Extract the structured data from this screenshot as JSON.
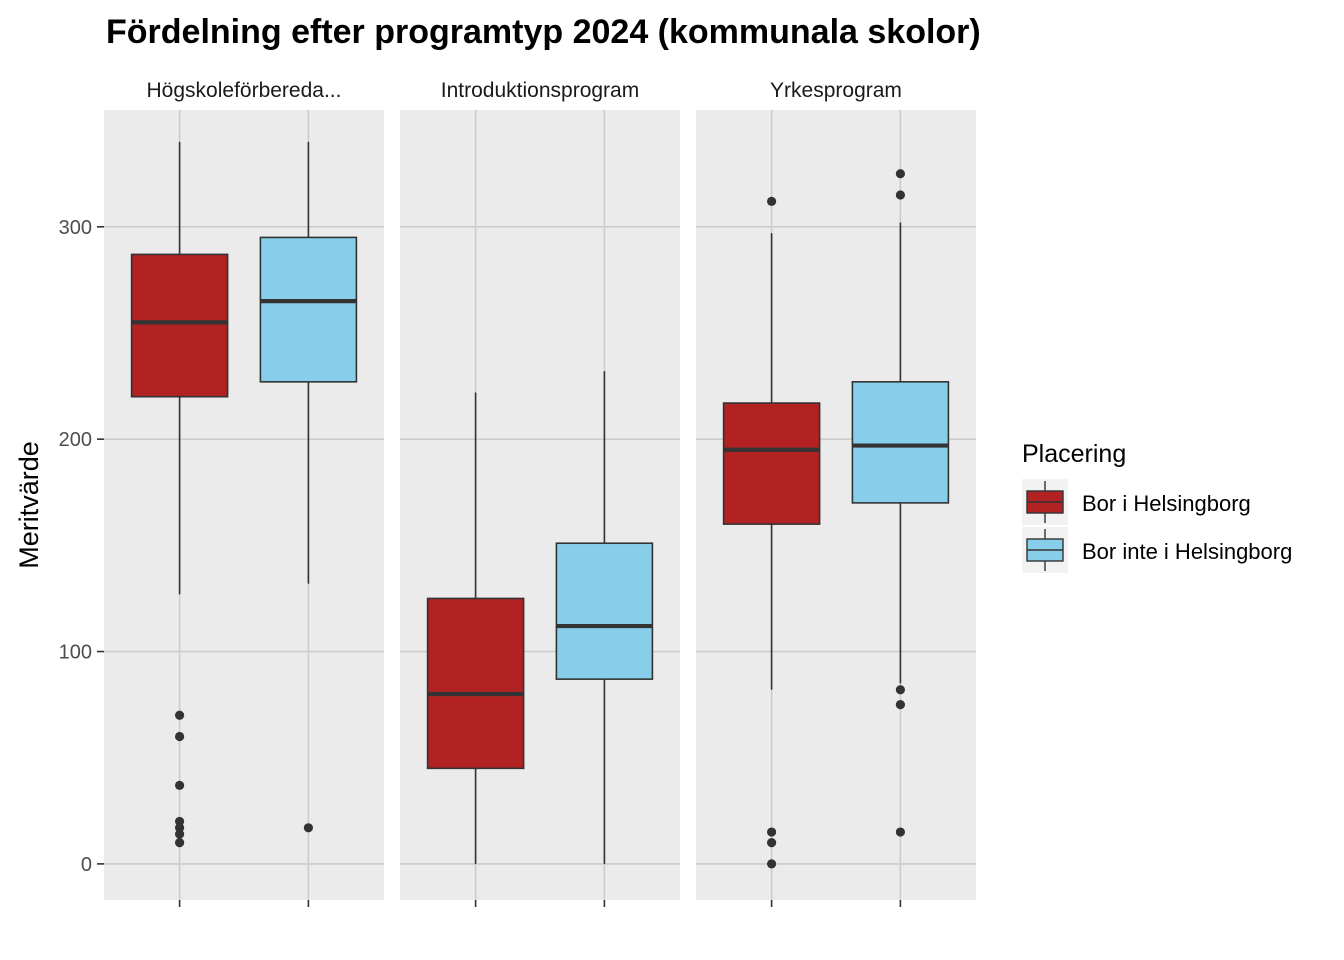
{
  "chart_data": {
    "type": "boxplot",
    "title": "Fördelning efter programtyp 2024 (kommunala skolor)",
    "ylabel": "Meritvärde",
    "xlabel": "",
    "ylim": [
      -17,
      355
    ],
    "yticks": [
      0,
      100,
      200,
      300
    ],
    "grid": true,
    "legend": {
      "title": "Placering",
      "position": "right",
      "entries": [
        {
          "name": "Bor i Helsingborg",
          "color": "#B22222"
        },
        {
          "name": "Bor inte i Helsingborg",
          "color": "#87CEEB"
        }
      ]
    },
    "panels": [
      {
        "label": "Högskoleförbereda...",
        "boxes": [
          {
            "group": "Bor i Helsingborg",
            "whisker_low": 127,
            "q1": 220,
            "median": 255,
            "q3": 287,
            "whisker_high": 340,
            "outliers": [
              70,
              60,
              37,
              20,
              17,
              14,
              10
            ]
          },
          {
            "group": "Bor inte i Helsingborg",
            "whisker_low": 132,
            "q1": 227,
            "median": 265,
            "q3": 295,
            "whisker_high": 340,
            "outliers": [
              17
            ]
          }
        ]
      },
      {
        "label": "Introduktionsprogram",
        "boxes": [
          {
            "group": "Bor i Helsingborg",
            "whisker_low": 0,
            "q1": 45,
            "median": 80,
            "q3": 125,
            "whisker_high": 222,
            "outliers": []
          },
          {
            "group": "Bor inte i Helsingborg",
            "whisker_low": 0,
            "q1": 87,
            "median": 112,
            "q3": 151,
            "whisker_high": 232,
            "outliers": []
          }
        ]
      },
      {
        "label": "Yrkesprogram",
        "boxes": [
          {
            "group": "Bor i Helsingborg",
            "whisker_low": 82,
            "q1": 160,
            "median": 195,
            "q3": 217,
            "whisker_high": 297,
            "outliers": [
              312,
              15,
              10,
              0
            ]
          },
          {
            "group": "Bor inte i Helsingborg",
            "whisker_low": 85,
            "q1": 170,
            "median": 197,
            "q3": 227,
            "whisker_high": 302,
            "outliers": [
              325,
              315,
              82,
              75,
              15
            ]
          }
        ]
      }
    ]
  }
}
